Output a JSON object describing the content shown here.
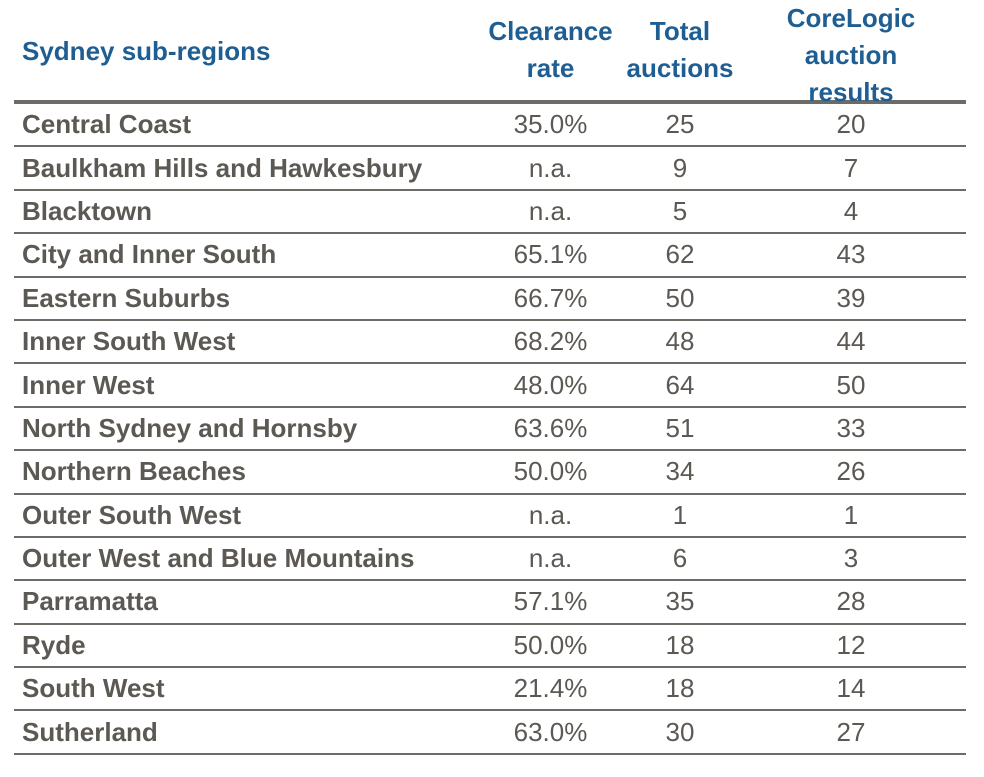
{
  "chart_data": {
    "type": "table",
    "headers": {
      "region": "Sydney sub-regions",
      "clearance_rate": "Clearance\nrate",
      "total_auctions": "Total\nauctions",
      "corelogic_results": "CoreLogic\nauction\nresults"
    },
    "rows": [
      {
        "region": "Central Coast",
        "clearance_rate": "35.0%",
        "total_auctions": "25",
        "corelogic_results": "20"
      },
      {
        "region": "Baulkham Hills and Hawkesbury",
        "clearance_rate": "n.a.",
        "total_auctions": "9",
        "corelogic_results": "7"
      },
      {
        "region": "Blacktown",
        "clearance_rate": "n.a.",
        "total_auctions": "5",
        "corelogic_results": "4"
      },
      {
        "region": "City and Inner South",
        "clearance_rate": "65.1%",
        "total_auctions": "62",
        "corelogic_results": "43"
      },
      {
        "region": "Eastern Suburbs",
        "clearance_rate": "66.7%",
        "total_auctions": "50",
        "corelogic_results": "39"
      },
      {
        "region": "Inner South West",
        "clearance_rate": "68.2%",
        "total_auctions": "48",
        "corelogic_results": "44"
      },
      {
        "region": "Inner West",
        "clearance_rate": "48.0%",
        "total_auctions": "64",
        "corelogic_results": "50"
      },
      {
        "region": "North Sydney and Hornsby",
        "clearance_rate": "63.6%",
        "total_auctions": "51",
        "corelogic_results": "33"
      },
      {
        "region": "Northern Beaches",
        "clearance_rate": "50.0%",
        "total_auctions": "34",
        "corelogic_results": "26"
      },
      {
        "region": "Outer South West",
        "clearance_rate": "n.a.",
        "total_auctions": "1",
        "corelogic_results": "1"
      },
      {
        "region": "Outer West and Blue Mountains",
        "clearance_rate": "n.a.",
        "total_auctions": "6",
        "corelogic_results": "3"
      },
      {
        "region": "Parramatta",
        "clearance_rate": "57.1%",
        "total_auctions": "35",
        "corelogic_results": "28"
      },
      {
        "region": "Ryde",
        "clearance_rate": "50.0%",
        "total_auctions": "18",
        "corelogic_results": "12"
      },
      {
        "region": "South West",
        "clearance_rate": "21.4%",
        "total_auctions": "18",
        "corelogic_results": "14"
      },
      {
        "region": "Sutherland",
        "clearance_rate": "63.0%",
        "total_auctions": "30",
        "corelogic_results": "27"
      }
    ]
  },
  "colors": {
    "header_text": "#1f5e93",
    "body_text": "#5c5853",
    "rule": "#6e6a65"
  }
}
